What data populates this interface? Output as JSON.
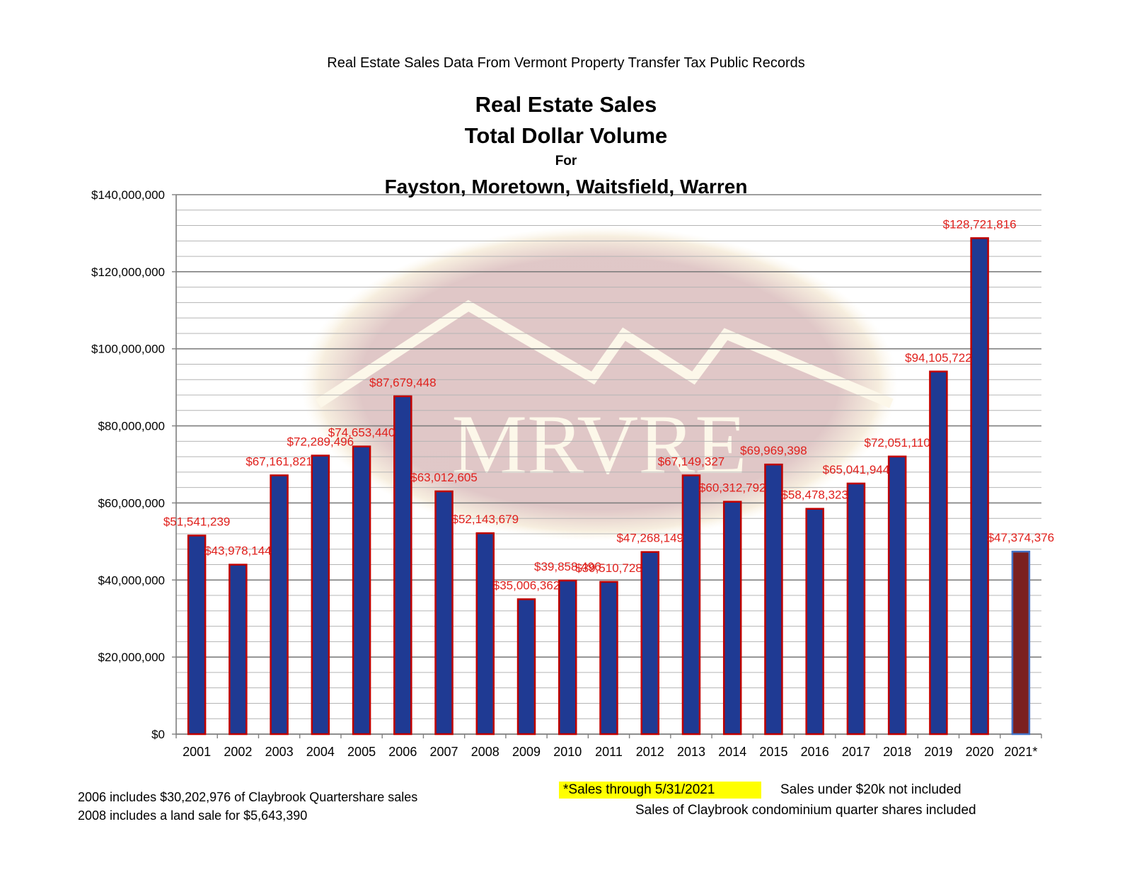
{
  "header": {
    "supertitle": "Real Estate Sales Data From Vermont Property Transfer Tax Public Records",
    "title_line1": "Real Estate Sales",
    "title_line2": "Total Dollar Volume",
    "title_line3": "For",
    "title_line4": "Fayston, Moretown, Waitsfield, Warren"
  },
  "watermark": {
    "text": "MRVRE"
  },
  "notes": {
    "left1": "2006 includes $30,202,976 of Claybrook Quartershare sales",
    "left2": "2008 includes a land sale for $5,643,390",
    "highlight": "*Sales through 5/31/2021",
    "right1": "Sales under $20k not included",
    "right2": "Sales of Claybrook condominium quarter shares included"
  },
  "colors": {
    "bar_fill": "#1f3a93",
    "bar_border": "#c00000",
    "last_bar_fill": "#7b2020",
    "last_bar_border": "#4472c4",
    "data_label": "#e0201c",
    "highlight": "#ffff00"
  },
  "chart_data": {
    "type": "bar",
    "title": "Real Estate Sales Total Dollar Volume For Fayston, Moretown, Waitsfield, Warren",
    "categories": [
      "2001",
      "2002",
      "2003",
      "2004",
      "2005",
      "2006",
      "2007",
      "2008",
      "2009",
      "2010",
      "2011",
      "2012",
      "2013",
      "2014",
      "2015",
      "2016",
      "2017",
      "2018",
      "2019",
      "2020",
      "2021*"
    ],
    "values": [
      51541239,
      43978144,
      67161821,
      72289496,
      74653440,
      87679448,
      63012605,
      52143679,
      35006362,
      39858496,
      39510728,
      47268149,
      67149327,
      60312792,
      69969398,
      58478323,
      65041944,
      72051110,
      94105722,
      128721816,
      47374376
    ],
    "data_labels": [
      "$51,541,239",
      "$43,978,144",
      "$67,161,821",
      "$72,289,496",
      "$74,653,440",
      "$87,679,448",
      "$63,012,605",
      "$52,143,679",
      "$35,006,362",
      "$39,858,496",
      "$39,510,728",
      "$47,268,149",
      "$67,149,327",
      "$60,312,792",
      "$69,969,398",
      "$58,478,323",
      "$65,041,944",
      "$72,051,110",
      "$94,105,722",
      "$128,721,816",
      "$47,374,376"
    ],
    "ylim": [
      0,
      140000000
    ],
    "yticks": [
      0,
      20000000,
      40000000,
      60000000,
      80000000,
      100000000,
      120000000,
      140000000
    ],
    "ytick_labels": [
      "$0",
      "$20,000,000",
      "$40,000,000",
      "$60,000,000",
      "$80,000,000",
      "$100,000,000",
      "$120,000,000",
      "$140,000,000"
    ],
    "minor_grid_step": 4000000,
    "grid": true,
    "legend": "none",
    "xlabel": "",
    "ylabel": ""
  }
}
